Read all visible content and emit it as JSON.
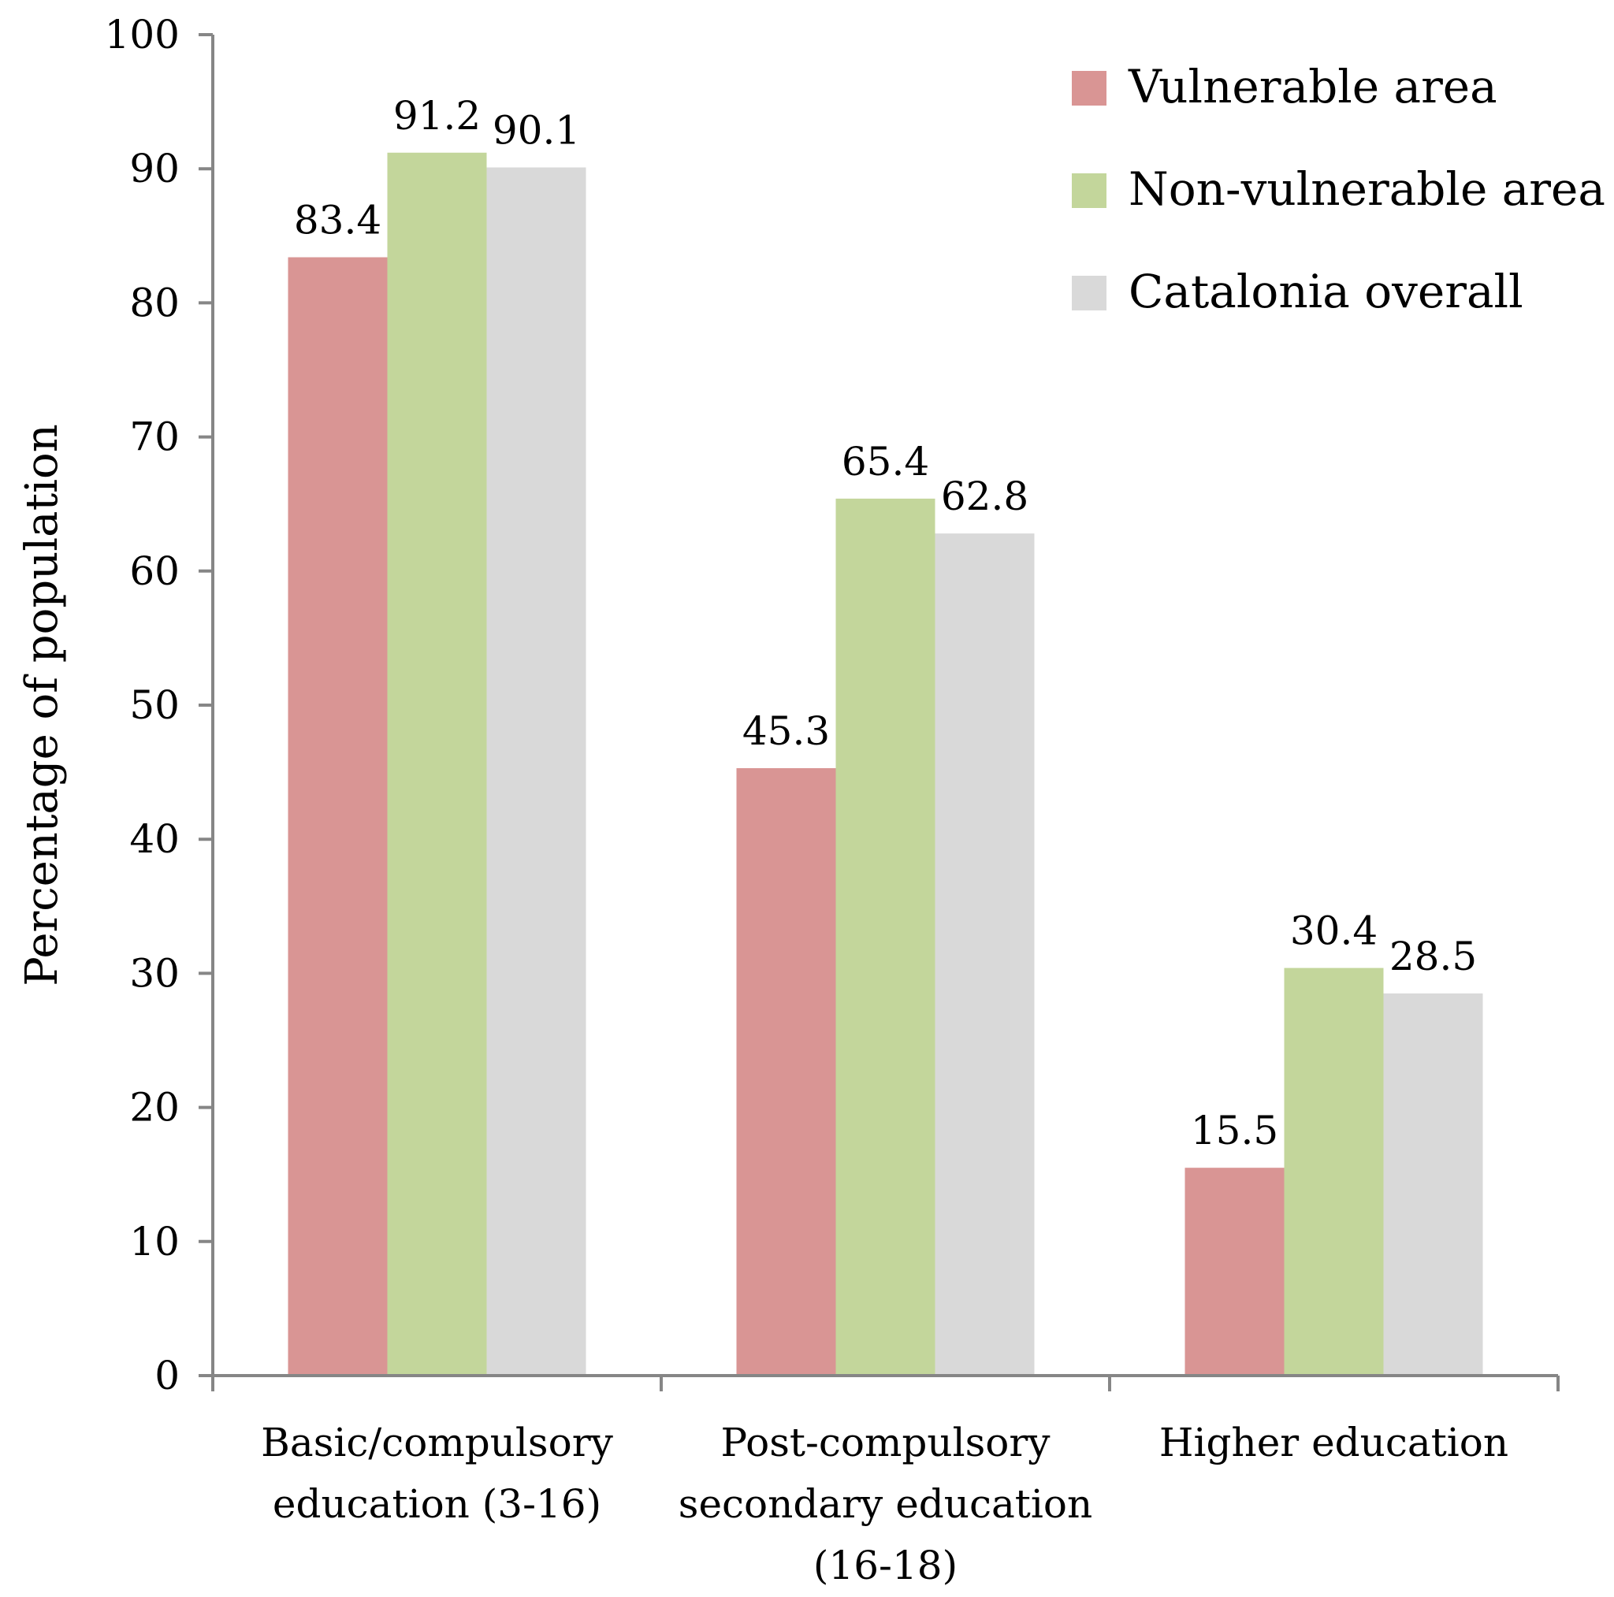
{
  "chart_data": {
    "type": "bar",
    "title": "",
    "xlabel": "",
    "ylabel": "Percentage of population",
    "ylim": [
      0,
      100
    ],
    "yticks": [
      0,
      10,
      20,
      30,
      40,
      50,
      60,
      70,
      80,
      90,
      100
    ],
    "grid": false,
    "legend_position": "top-right",
    "categories": [
      [
        "Basic/compulsory",
        "education (3-16)"
      ],
      [
        "Post-compulsory",
        "secondary education",
        "(16-18)"
      ],
      [
        "Higher education"
      ]
    ],
    "series": [
      {
        "name": "Vulnerable area",
        "color": "#d99594",
        "values": [
          83.4,
          45.3,
          15.5
        ]
      },
      {
        "name": "Non-vulnerable area",
        "color": "#c3d69b",
        "values": [
          91.2,
          65.4,
          30.4
        ]
      },
      {
        "name": "Catalonia overall",
        "color": "#d9d9d9",
        "values": [
          90.1,
          62.8,
          28.5
        ]
      }
    ]
  }
}
